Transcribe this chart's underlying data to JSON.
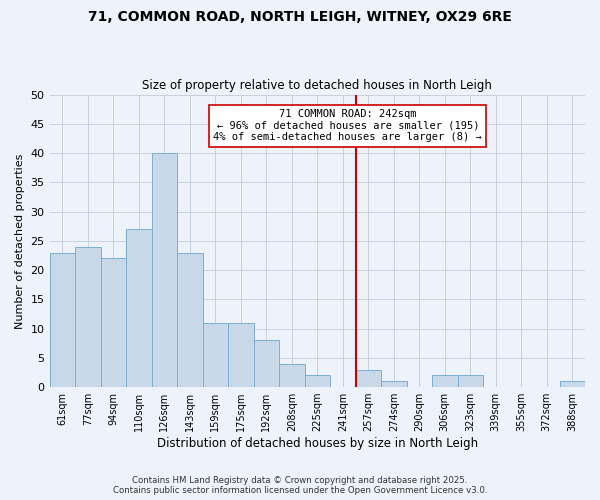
{
  "title": "71, COMMON ROAD, NORTH LEIGH, WITNEY, OX29 6RE",
  "subtitle": "Size of property relative to detached houses in North Leigh",
  "xlabel": "Distribution of detached houses by size in North Leigh",
  "ylabel": "Number of detached properties",
  "bar_labels": [
    "61sqm",
    "77sqm",
    "94sqm",
    "110sqm",
    "126sqm",
    "143sqm",
    "159sqm",
    "175sqm",
    "192sqm",
    "208sqm",
    "225sqm",
    "241sqm",
    "257sqm",
    "274sqm",
    "290sqm",
    "306sqm",
    "323sqm",
    "339sqm",
    "355sqm",
    "372sqm",
    "388sqm"
  ],
  "bar_values": [
    23,
    24,
    22,
    27,
    40,
    23,
    11,
    11,
    8,
    4,
    2,
    0,
    3,
    1,
    0,
    2,
    2,
    0,
    0,
    0,
    1
  ],
  "bar_color": "#c8d8e8",
  "bar_edge_color": "#7bafd4",
  "vline_x": 11.5,
  "vline_color": "#cc0000",
  "annotation_line1": "71 COMMON ROAD: 242sqm",
  "annotation_line2": "← 96% of detached houses are smaller (195)",
  "annotation_line3": "4% of semi-detached houses are larger (8) →",
  "ylim": [
    0,
    50
  ],
  "yticks": [
    0,
    5,
    10,
    15,
    20,
    25,
    30,
    35,
    40,
    45,
    50
  ],
  "background_color": "#eef2fb",
  "grid_color": "#c8d0e0",
  "footer_line1": "Contains HM Land Registry data © Crown copyright and database right 2025.",
  "footer_line2": "Contains public sector information licensed under the Open Government Licence v3.0."
}
